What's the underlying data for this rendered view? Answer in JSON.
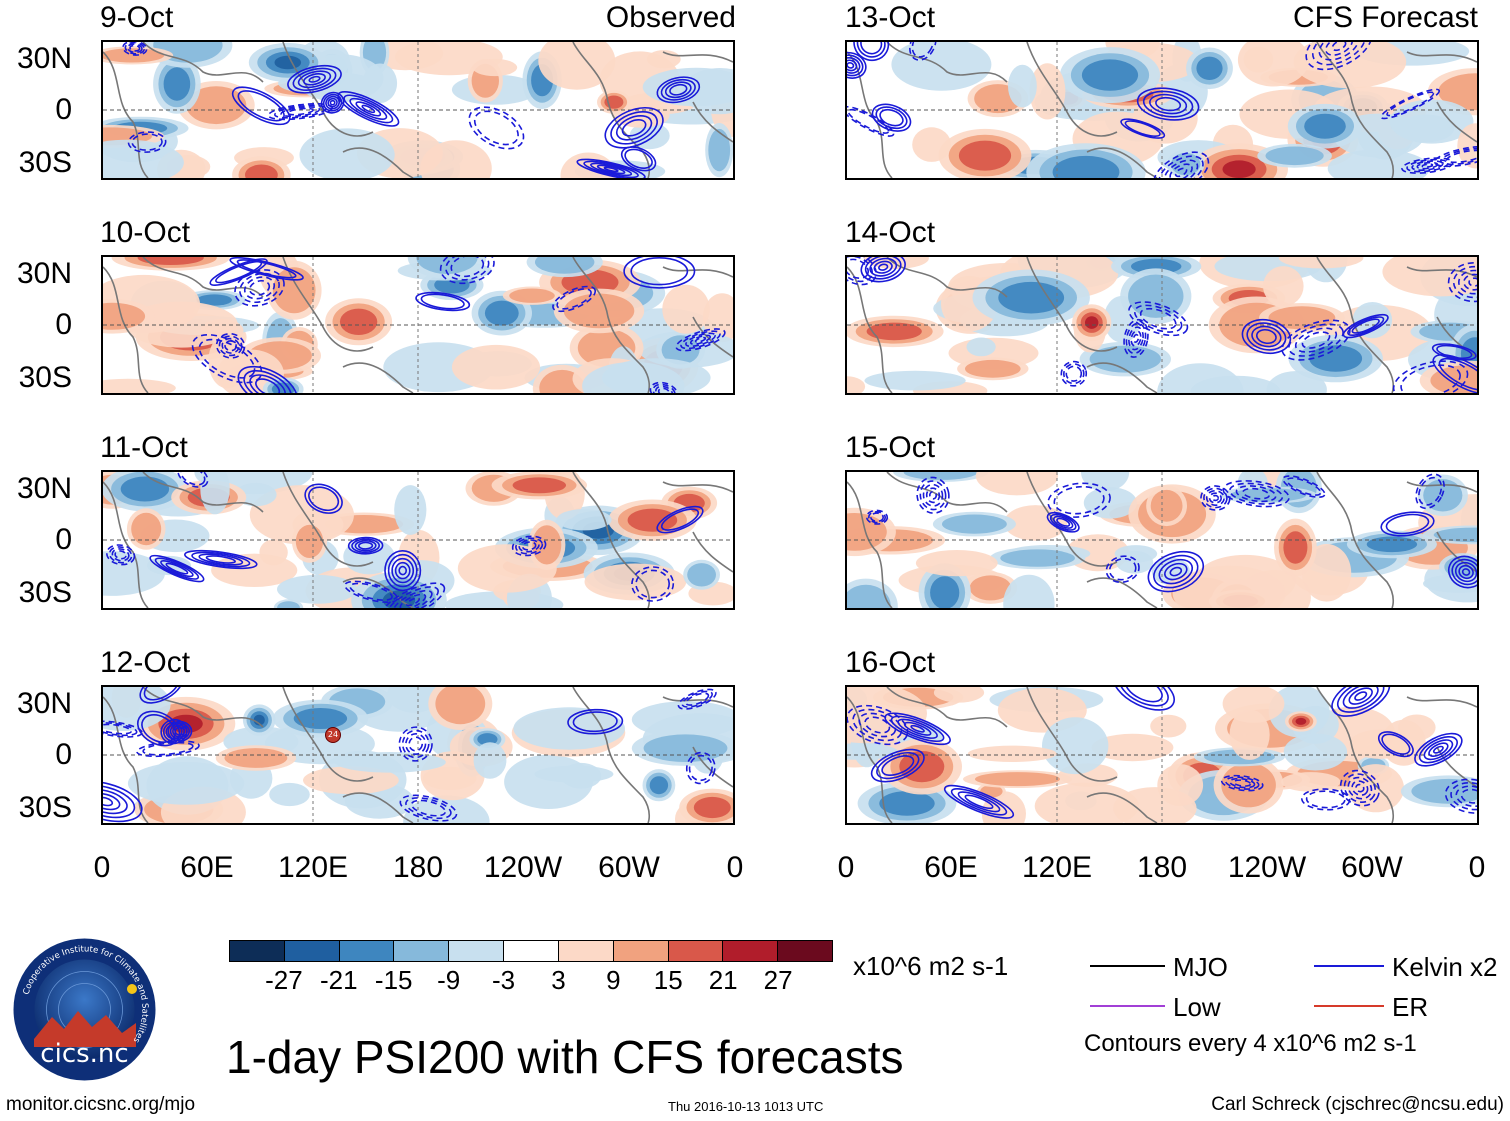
{
  "observed_label": "Observed",
  "forecast_label": "CFS Forecast",
  "lat_labels": [
    "30N",
    "0",
    "30S"
  ],
  "lon_labels": [
    "0",
    "60E",
    "120E",
    "180",
    "120W",
    "60W",
    "0"
  ],
  "panels_left": [
    {
      "date": "9-Oct"
    },
    {
      "date": "10-Oct"
    },
    {
      "date": "11-Oct"
    },
    {
      "date": "12-Oct"
    }
  ],
  "panels_right": [
    {
      "date": "13-Oct"
    },
    {
      "date": "14-Oct"
    },
    {
      "date": "15-Oct"
    },
    {
      "date": "16-Oct"
    }
  ],
  "storm_marker": "24",
  "colorbar": {
    "colors": [
      "#0d2d57",
      "#1f5fa0",
      "#3e86bf",
      "#86b9db",
      "#c8e0ef",
      "#ffffff",
      "#fcd9c7",
      "#f1a27f",
      "#d9584a",
      "#b11d2b",
      "#6b0a1e"
    ],
    "labels": [
      "-27",
      "-21",
      "-15",
      "-9",
      "-3",
      "3",
      "9",
      "15",
      "21",
      "27"
    ],
    "units": "x10^6 m2 s-1"
  },
  "legend": {
    "items": [
      {
        "label": "MJO",
        "color": "#000000"
      },
      {
        "label": "Kelvin x2",
        "color": "#1a1ad8"
      },
      {
        "label": "Low",
        "color": "#a23fd6"
      },
      {
        "label": "ER",
        "color": "#d63a2a"
      }
    ],
    "contour_note": "Contours every 4 x10^6 m2 s-1"
  },
  "logo_text": "cics.nc",
  "logo_ring_text": "Cooperative Institute for Climate and Satellites",
  "title": "1-day PSI200 with CFS forecasts",
  "footer": {
    "left": "monitor.cicsnc.org/mjo",
    "center": "Thu 2016-10-13 1013 UTC",
    "right": "Carl Schreck (cjschrec@ncsu.edu)"
  }
}
